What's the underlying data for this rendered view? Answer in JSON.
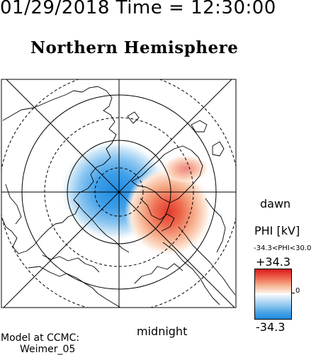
{
  "header": {
    "timestamp": "01/29/2018 Time = 12:30:00",
    "title": "Northern Hemisphere"
  },
  "map": {
    "dawn_label": "dawn",
    "midnight_label": "midnight",
    "potential_pattern": {
      "negative_cell": {
        "center_mlt": 12.5,
        "center_colat_deg": 14,
        "min_kV": -34.3,
        "color": "#1e8ae0"
      },
      "positive_cell": {
        "center_mlt": 4.5,
        "center_colat_deg": 22,
        "max_kV": 30.0,
        "color": "#e03a2c"
      }
    },
    "latitude_circles_deg": [
      10,
      20,
      30,
      40,
      50
    ],
    "line_colors": {
      "coastline": "#000000",
      "grid": "#000000"
    }
  },
  "colorbar": {
    "title": "PHI [kV]",
    "range_text": "-34.3<PHI<30.0",
    "max_label": "+34.3",
    "min_label": "-34.3",
    "zero_label": "0",
    "colors": [
      "#d7191c",
      "#ef6a4f",
      "#f6b89a",
      "#ffffff",
      "#9dcdf1",
      "#4ea6e6",
      "#1e8ae0"
    ]
  },
  "credit": {
    "line1": "Model at CCMC:",
    "line2": "Weimer_05"
  }
}
